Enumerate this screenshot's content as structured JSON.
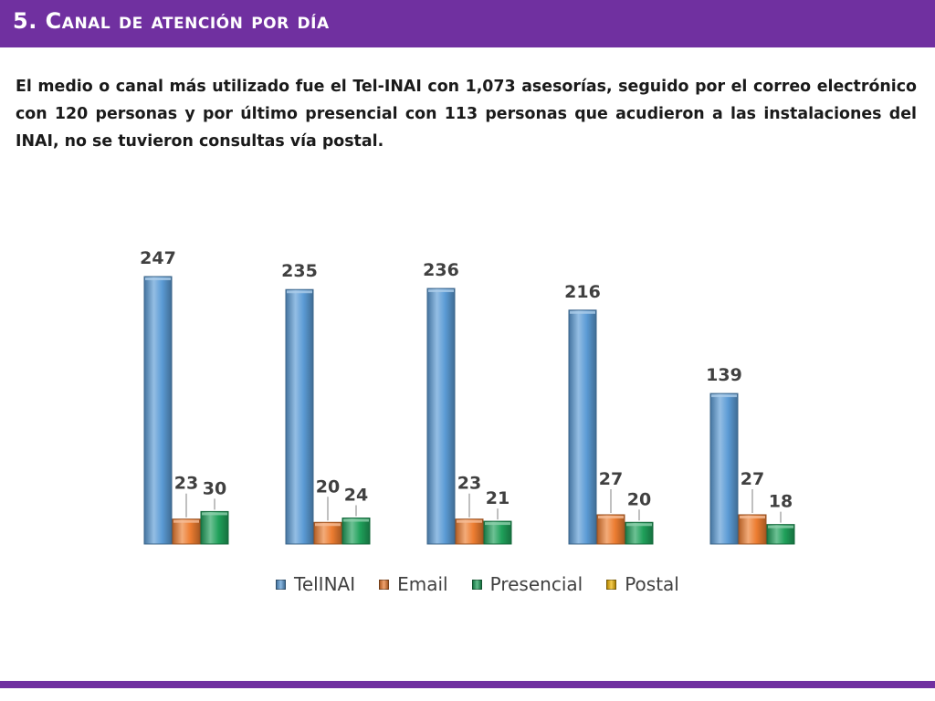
{
  "page": {
    "title": "5. Canal de atención por día",
    "summary": "El medio o canal más utilizado fue el Tel-INAI con 1,073 asesorías, seguido por el correo electrónico con 120 personas y por último presencial con 113 personas que acudieron a las instalaciones del INAI, no se tuvieron consultas vía postal."
  },
  "theme": {
    "band_color": "#7030a0",
    "title_color": "#ffffff",
    "text_color": "#1a1a1a"
  },
  "chart_data": {
    "type": "bar",
    "title": "",
    "xlabel": "",
    "ylabel": "",
    "categories": [
      "",
      "",
      "",
      "",
      ""
    ],
    "ylim": [
      0,
      250
    ],
    "grid": false,
    "legend_position": "bottom",
    "series": [
      {
        "name": "TelINAI",
        "values": [
          247,
          235,
          236,
          216,
          139
        ],
        "color": "#5b9bd5"
      },
      {
        "name": "Email",
        "values": [
          23,
          20,
          23,
          27,
          27
        ],
        "color": "#ed7d31"
      },
      {
        "name": "Presencial",
        "values": [
          30,
          24,
          21,
          20,
          18
        ],
        "color": "#1fa05a"
      },
      {
        "name": "Postal",
        "values": [
          0,
          0,
          0,
          0,
          0
        ],
        "color": "#f2b705"
      }
    ]
  }
}
